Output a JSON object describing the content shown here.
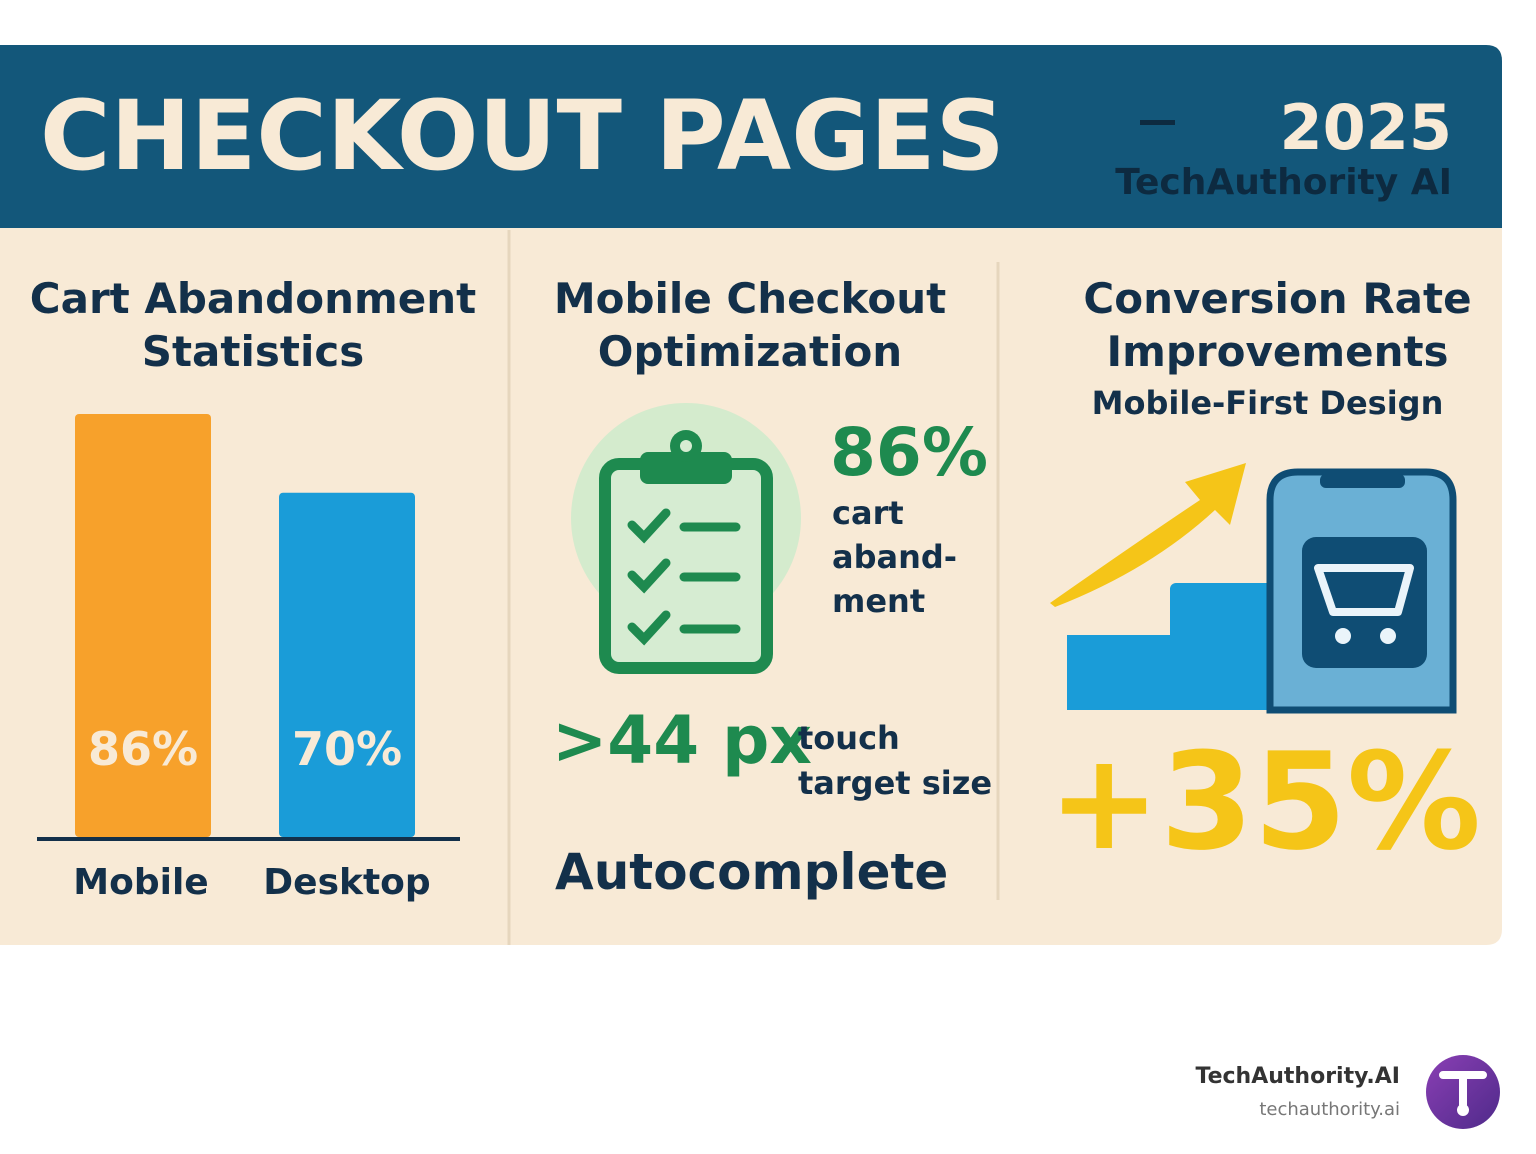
{
  "header": {
    "title": "CHECKOUT PAGES",
    "year": "2025",
    "brand": "TechAuthority AI"
  },
  "chart_data": {
    "type": "bar",
    "title": "Cart Abandonment Statistics",
    "categories": [
      "Mobile",
      "Desktop"
    ],
    "values": [
      86,
      70
    ],
    "value_labels": [
      "86%",
      "70%"
    ],
    "colors": [
      "#f7a12b",
      "#1a9cd8"
    ]
  },
  "mobile_panel": {
    "title": "Mobile Checkout Optimization",
    "stat": "86%",
    "stat_caption": [
      "cart",
      "aband-",
      "ment"
    ],
    "touch_value": ">44 px",
    "touch_caption": [
      "touch",
      "target size"
    ],
    "feature": "Autocomplete"
  },
  "conversion_panel": {
    "title": "Conversion Rate Improvements",
    "subtitle": "Mobile-First Design",
    "stat": "+35%"
  },
  "footer": {
    "brand": "TechAuthority.AI",
    "url": "techauthority.ai"
  }
}
